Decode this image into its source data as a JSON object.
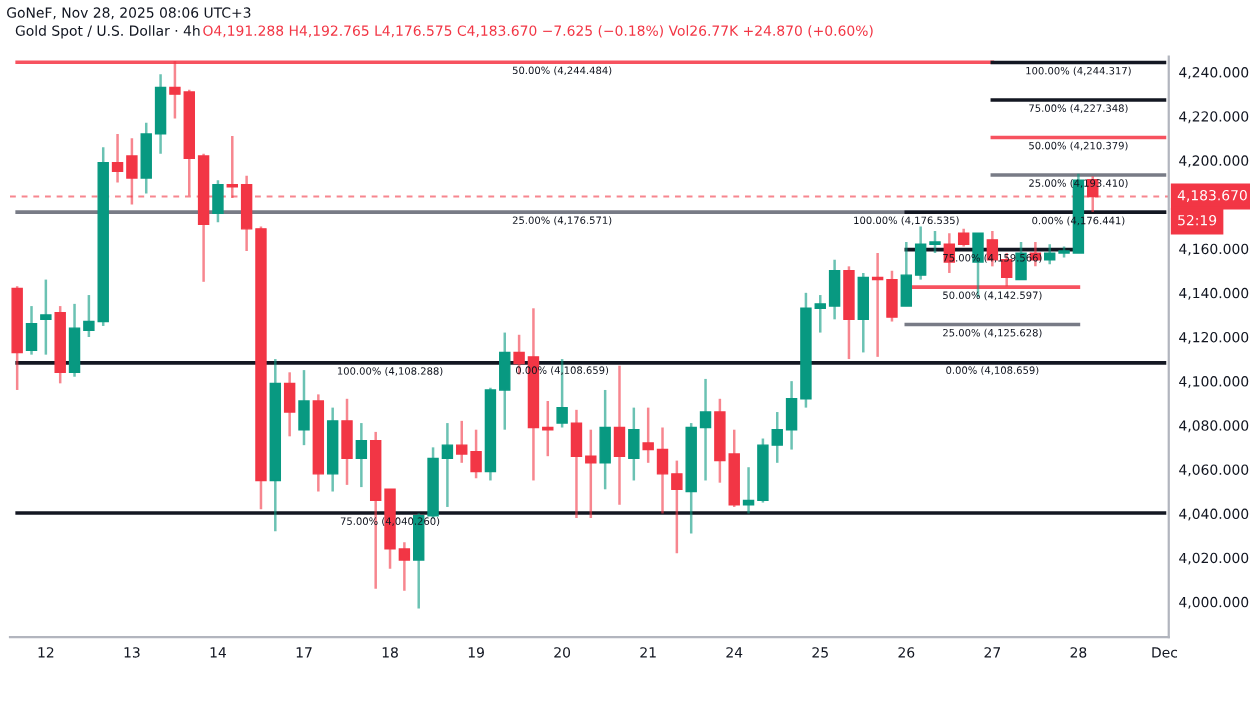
{
  "chart_data": {
    "type": "candlestick",
    "title": "Gold Spot / U.S. Dollar · 4h",
    "subtitle": "O4,191.288 H4,192.765 L4,176.575 C4,183.670 −7.625 (−0.18%) Vol26.77K +24.870 (+0.60%)",
    "categories": [
      null,
      null,
      "12",
      null,
      null,
      null,
      null,
      null,
      "13",
      null,
      null,
      null,
      null,
      null,
      "14",
      null,
      null,
      null,
      null,
      null,
      "17",
      null,
      null,
      null,
      null,
      null,
      "18",
      null,
      null,
      null,
      null,
      null,
      "19",
      null,
      null,
      null,
      null,
      null,
      "20",
      null,
      null,
      null,
      null,
      null,
      "21",
      null,
      null,
      null,
      null,
      null,
      "24",
      null,
      null,
      null,
      null,
      null,
      "25",
      null,
      null,
      null,
      null,
      null,
      "26",
      null,
      null,
      null,
      null,
      null,
      "27",
      null,
      null,
      null,
      null,
      null,
      "28",
      null,
      null,
      null,
      null,
      null,
      "Dec"
    ],
    "ylim": [
      3984,
      4247
    ],
    "yticks": [
      {
        "value": 4000,
        "label": "4,000.000"
      },
      {
        "value": 4020,
        "label": "4,020.000"
      },
      {
        "value": 4040,
        "label": "4,040.000"
      },
      {
        "value": 4060,
        "label": "4,060.000"
      },
      {
        "value": 4080,
        "label": "4,080.000"
      },
      {
        "value": 4100,
        "label": "4,100.000"
      },
      {
        "value": 4120,
        "label": "4,120.000"
      },
      {
        "value": 4140,
        "label": "4,140.000"
      },
      {
        "value": 4160,
        "label": "4,160.000"
      },
      {
        "value": 4200,
        "label": "4,200.000"
      },
      {
        "value": 4220,
        "label": "4,220.000"
      },
      {
        "value": 4240,
        "label": "4,240.000"
      }
    ],
    "grid": false,
    "ref_lines": [
      {
        "axis": "y",
        "value": 4183.67,
        "label": "4,183.670",
        "color": "#f23645",
        "line_style": "dashed"
      }
    ],
    "ohlc": [
      [
        4142,
        4143,
        4096,
        4113
      ],
      [
        4114,
        4134,
        4112,
        4126
      ],
      [
        4128,
        4146,
        4112,
        4130
      ],
      [
        4131,
        4134,
        4099,
        4104
      ],
      [
        4104,
        4135,
        4102,
        4124
      ],
      [
        4123,
        4139,
        4120,
        4127
      ],
      [
        4127,
        4206,
        4125,
        4199
      ],
      [
        4199,
        4212,
        4190,
        4195
      ],
      [
        4202,
        4210,
        4180,
        4192
      ],
      [
        4192,
        4217,
        4185,
        4212
      ],
      [
        4212,
        4239,
        4203,
        4233
      ],
      [
        4233,
        4245,
        4219,
        4230
      ],
      [
        4231,
        4232,
        4184,
        4201
      ],
      [
        4202,
        4203,
        4145,
        4171
      ],
      [
        4176,
        4191,
        4172,
        4189
      ],
      [
        4189,
        4211,
        4183,
        4188
      ],
      [
        4189,
        4193,
        4159,
        4169
      ],
      [
        4169,
        4170,
        4042,
        4055
      ],
      [
        4055,
        4110,
        4032,
        4099
      ],
      [
        4099,
        4104,
        4075,
        4086
      ],
      [
        4078,
        4105,
        4071,
        4091
      ],
      [
        4091,
        4094,
        4050,
        4058
      ],
      [
        4058,
        4088,
        4050,
        4082
      ],
      [
        4082,
        4092,
        4053,
        4065
      ],
      [
        4065,
        4081,
        4052,
        4073
      ],
      [
        4073,
        4077,
        4006,
        4046
      ],
      [
        4051,
        4051,
        4015,
        4024
      ],
      [
        4024,
        4027,
        4005,
        4019
      ],
      [
        4019,
        4040,
        3997,
        4039
      ],
      [
        4039,
        4070,
        4038,
        4065
      ],
      [
        4065,
        4081,
        4043,
        4071
      ],
      [
        4071,
        4082,
        4063,
        4067
      ],
      [
        4068,
        4078,
        4056,
        4059
      ],
      [
        4059,
        4097,
        4055,
        4096
      ],
      [
        4096,
        4122,
        4078,
        4113
      ],
      [
        4113,
        4121,
        4103,
        4108
      ],
      [
        4111,
        4133,
        4055,
        4079
      ],
      [
        4079,
        4091,
        4066,
        4078
      ],
      [
        4081,
        4110,
        4079,
        4088
      ],
      [
        4081,
        4087,
        4038,
        4066
      ],
      [
        4066,
        4078,
        4038,
        4063
      ],
      [
        4063,
        4096,
        4051,
        4079
      ],
      [
        4079,
        4107,
        4044,
        4066
      ],
      [
        4065,
        4088,
        4055,
        4078
      ],
      [
        4072,
        4088,
        4063,
        4069
      ],
      [
        4069,
        4079,
        4040,
        4058
      ],
      [
        4058,
        4064,
        4022,
        4051
      ],
      [
        4050,
        4081,
        4031,
        4079
      ],
      [
        4079,
        4101,
        4055,
        4086
      ],
      [
        4086,
        4092,
        4054,
        4064
      ],
      [
        4067,
        4078,
        4043,
        4044
      ],
      [
        4044,
        4061,
        4040,
        4046
      ],
      [
        4046,
        4074,
        4045,
        4071
      ],
      [
        4071,
        4086,
        4063,
        4078
      ],
      [
        4078,
        4100,
        4069,
        4092
      ],
      [
        4092,
        4140,
        4088,
        4133
      ],
      [
        4133,
        4139,
        4122,
        4135
      ],
      [
        4134,
        4155,
        4128,
        4150
      ],
      [
        4150,
        4152,
        4110,
        4128
      ],
      [
        4128,
        4149,
        4113,
        4147
      ],
      [
        4147,
        4158,
        4111,
        4146
      ],
      [
        4146,
        4150,
        4127,
        4129
      ],
      [
        4134,
        4163,
        4134,
        4148
      ],
      [
        4148,
        4170,
        4146,
        4162
      ],
      [
        4162,
        4168,
        4158,
        4163
      ],
      [
        4162,
        4167,
        4149,
        4154
      ],
      [
        4167,
        4169,
        4161,
        4162
      ],
      [
        4154,
        4167,
        4138,
        4167
      ],
      [
        4164,
        4168,
        4152,
        4155
      ],
      [
        4155,
        4158,
        4143,
        4147
      ],
      [
        4146,
        4163,
        4146,
        4158
      ],
      [
        4158,
        4163,
        4152,
        4155
      ],
      [
        4155,
        4162,
        4153,
        4158
      ],
      [
        4158,
        4161,
        4156,
        4159
      ],
      [
        4158,
        4194,
        4158,
        4191
      ],
      [
        4191.288,
        4192.765,
        4176.575,
        4183.67
      ],
      null,
      null,
      null,
      null,
      null
    ],
    "colors": [
      "#f23645",
      "#089981",
      "#089981",
      "#f23645",
      "#089981",
      "#089981",
      "#089981",
      "#f23645",
      "#f23645",
      "#089981",
      "#089981",
      "#f23645",
      "#f23645",
      "#f23645",
      "#089981",
      "#f23645",
      "#f23645",
      "#f23645",
      "#089981",
      "#f23645",
      "#089981",
      "#f23645",
      "#089981",
      "#f23645",
      "#089981",
      "#f23645",
      "#f23645",
      "#f23645",
      "#089981",
      "#089981",
      "#089981",
      "#f23645",
      "#f23645",
      "#089981",
      "#089981",
      "#f23645",
      "#f23645",
      "#f23645",
      "#089981",
      "#f23645",
      "#f23645",
      "#089981",
      "#f23645",
      "#089981",
      "#f23645",
      "#f23645",
      "#f23645",
      "#089981",
      "#089981",
      "#f23645",
      "#f23645",
      "#089981",
      "#089981",
      "#089981",
      "#089981",
      "#089981",
      "#089981",
      "#089981",
      "#f23645",
      "#089981",
      "#f23645",
      "#f23645",
      "#089981",
      "#089981",
      "#089981",
      "#f23645",
      "#f23645",
      "#089981",
      "#f23645",
      "#f23645",
      "#089981",
      "#f23645",
      "#089981",
      "#089981",
      "#089981",
      "#f23645",
      null,
      null,
      null,
      null,
      null
    ],
    "series": [
      {
        "type": "line",
        "color": "#f7525f",
        "values": [
          4244.484,
          4244.484,
          4244.484,
          4244.484,
          4244.484,
          4244.484,
          4244.484,
          4244.484,
          4244.484,
          4244.484,
          4244.484,
          4244.484,
          4244.484,
          4244.484,
          4244.484,
          4244.484,
          4244.484,
          4244.484,
          4244.484,
          4244.484,
          4244.484,
          4244.484,
          4244.484,
          4244.484,
          4244.484,
          4244.484,
          4244.484,
          4244.484,
          4244.484,
          4244.484,
          4244.484,
          4244.484,
          4244.484,
          4244.484,
          4244.484,
          4244.484,
          4244.484,
          4244.484,
          4244.484,
          4244.484,
          4244.484,
          4244.484,
          4244.484,
          4244.484,
          4244.484,
          4244.484,
          4244.484,
          4244.484,
          4244.484,
          4244.484,
          4244.484,
          4244.484,
          4244.484,
          4244.484,
          4244.484,
          4244.484,
          4244.484,
          4244.484,
          4244.484,
          4244.484,
          4244.484,
          4244.484,
          4244.484,
          4244.484,
          4244.484,
          4244.484,
          4244.484,
          4244.484,
          4244.484,
          null,
          null,
          null,
          null,
          null,
          null,
          null,
          null,
          null,
          null,
          null,
          null
        ]
      },
      {
        "type": "line",
        "color": "#787b86",
        "values": [
          4176.571,
          4176.571,
          4176.571,
          4176.571,
          4176.571,
          4176.571,
          4176.571,
          4176.571,
          4176.571,
          4176.571,
          4176.571,
          4176.571,
          4176.571,
          4176.571,
          4176.571,
          4176.571,
          4176.571,
          4176.571,
          4176.571,
          4176.571,
          4176.571,
          4176.571,
          4176.571,
          4176.571,
          4176.571,
          4176.571,
          4176.571,
          4176.571,
          4176.571,
          4176.571,
          4176.571,
          4176.571,
          4176.571,
          4176.571,
          4176.571,
          4176.571,
          4176.571,
          4176.571,
          4176.571,
          4176.571,
          4176.571,
          4176.571,
          4176.571,
          4176.571,
          4176.571,
          4176.571,
          4176.571,
          4176.571,
          4176.571,
          4176.571,
          4176.571,
          4176.571,
          4176.571,
          4176.571,
          4176.571,
          4176.571,
          4176.571,
          4176.571,
          4176.571,
          4176.571,
          4176.571,
          4176.571,
          4176.571,
          4176.571,
          4176.571,
          4176.571,
          4176.571,
          4176.571,
          4176.571,
          4176.571,
          4176.571,
          4176.571,
          4176.571,
          4176.571,
          4176.571,
          4176.571,
          4176.571,
          4176.571,
          4176.571,
          4176.571,
          4176.571
        ]
      },
      {
        "type": "line",
        "color": "#131722",
        "values": [
          4108.288,
          4108.288,
          4108.288,
          4108.288,
          4108.288,
          4108.288,
          4108.288,
          4108.288,
          4108.288,
          4108.288,
          4108.288,
          4108.288,
          4108.288,
          4108.288,
          4108.288,
          4108.288,
          4108.288,
          4108.288,
          4108.288,
          4108.288,
          4108.288,
          4108.288,
          4108.288,
          4108.288,
          4108.288,
          4108.288,
          4108.288,
          4108.288,
          4108.288,
          4108.288,
          4108.288,
          4108.288,
          4108.288,
          4108.288,
          4108.288,
          4108.288,
          4108.288,
          4108.288,
          4108.288,
          4108.288,
          4108.288,
          4108.288,
          4108.288,
          4108.288,
          4108.288,
          4108.288,
          4108.288,
          4108.288,
          4108.288,
          4108.288,
          4108.288,
          4108.288,
          4108.288,
          4108.288,
          4108.288,
          4108.288,
          4108.288,
          4108.288,
          4108.288,
          4108.288,
          4108.288,
          4108.288,
          4108.288,
          4108.288,
          4108.288,
          4108.288,
          4108.288,
          4108.288,
          4108.288,
          4108.288,
          4108.288,
          4108.288,
          4108.288,
          4108.288,
          4108.288,
          4108.288,
          4108.288,
          4108.288,
          4108.288,
          4108.288,
          4108.288
        ]
      },
      {
        "type": "line",
        "color": "#131722",
        "values": [
          4040.26,
          4040.26,
          4040.26,
          4040.26,
          4040.26,
          4040.26,
          4040.26,
          4040.26,
          4040.26,
          4040.26,
          4040.26,
          4040.26,
          4040.26,
          4040.26,
          4040.26,
          4040.26,
          4040.26,
          4040.26,
          4040.26,
          4040.26,
          4040.26,
          4040.26,
          4040.26,
          4040.26,
          4040.26,
          4040.26,
          4040.26,
          4040.26,
          4040.26,
          4040.26,
          4040.26,
          4040.26,
          4040.26,
          4040.26,
          4040.26,
          4040.26,
          4040.26,
          4040.26,
          4040.26,
          4040.26,
          4040.26,
          4040.26,
          4040.26,
          4040.26,
          4040.26,
          4040.26,
          4040.26,
          4040.26,
          4040.26,
          4040.26,
          4040.26,
          4040.26,
          4040.26,
          4040.26,
          4040.26,
          4040.26,
          4040.26,
          4040.26,
          4040.26,
          4040.26,
          4040.26,
          4040.26,
          4040.26,
          4040.26,
          4040.26,
          4040.26,
          4040.26,
          4040.26,
          4040.26,
          4040.26,
          4040.26,
          4040.26,
          4040.26,
          4040.26,
          4040.26,
          4040.26,
          4040.26,
          4040.26,
          4040.26,
          4040.26,
          4040.26
        ]
      },
      {
        "type": "line",
        "color": "#131722",
        "values": [
          null,
          null,
          null,
          null,
          null,
          null,
          null,
          null,
          null,
          null,
          null,
          null,
          null,
          null,
          null,
          null,
          null,
          null,
          null,
          null,
          null,
          null,
          null,
          null,
          null,
          null,
          null,
          null,
          null,
          null,
          null,
          null,
          null,
          null,
          null,
          null,
          null,
          null,
          null,
          null,
          null,
          null,
          null,
          null,
          null,
          null,
          null,
          null,
          null,
          null,
          null,
          null,
          null,
          null,
          null,
          null,
          null,
          null,
          null,
          null,
          null,
          null,
          null,
          null,
          null,
          null,
          null,
          null,
          4244.317,
          4244.317,
          4244.317,
          4244.317,
          4244.317,
          4244.317,
          4244.317,
          4244.317,
          4244.317,
          4244.317,
          4244.317,
          4244.317,
          4244.317
        ]
      },
      {
        "type": "line",
        "color": "#131722",
        "values": [
          null,
          null,
          null,
          null,
          null,
          null,
          null,
          null,
          null,
          null,
          null,
          null,
          null,
          null,
          null,
          null,
          null,
          null,
          null,
          null,
          null,
          null,
          null,
          null,
          null,
          null,
          null,
          null,
          null,
          null,
          null,
          null,
          null,
          null,
          null,
          null,
          null,
          null,
          null,
          null,
          null,
          null,
          null,
          null,
          null,
          null,
          null,
          null,
          null,
          null,
          null,
          null,
          null,
          null,
          null,
          null,
          null,
          null,
          null,
          null,
          null,
          null,
          null,
          null,
          null,
          null,
          null,
          null,
          4227.348,
          4227.348,
          4227.348,
          4227.348,
          4227.348,
          4227.348,
          4227.348,
          4227.348,
          4227.348,
          4227.348,
          4227.348,
          4227.348,
          4227.348
        ]
      },
      {
        "type": "line",
        "color": "#f7525f",
        "values": [
          null,
          null,
          null,
          null,
          null,
          null,
          null,
          null,
          null,
          null,
          null,
          null,
          null,
          null,
          null,
          null,
          null,
          null,
          null,
          null,
          null,
          null,
          null,
          null,
          null,
          null,
          null,
          null,
          null,
          null,
          null,
          null,
          null,
          null,
          null,
          null,
          null,
          null,
          null,
          null,
          null,
          null,
          null,
          null,
          null,
          null,
          null,
          null,
          null,
          null,
          null,
          null,
          null,
          null,
          null,
          null,
          null,
          null,
          null,
          null,
          null,
          null,
          null,
          null,
          null,
          null,
          null,
          null,
          4210.379,
          4210.379,
          4210.379,
          4210.379,
          4210.379,
          4210.379,
          4210.379,
          4210.379,
          4210.379,
          4210.379,
          4210.379,
          4210.379,
          4210.379
        ]
      },
      {
        "type": "line",
        "color": "#787b86",
        "values": [
          null,
          null,
          null,
          null,
          null,
          null,
          null,
          null,
          null,
          null,
          null,
          null,
          null,
          null,
          null,
          null,
          null,
          null,
          null,
          null,
          null,
          null,
          null,
          null,
          null,
          null,
          null,
          null,
          null,
          null,
          null,
          null,
          null,
          null,
          null,
          null,
          null,
          null,
          null,
          null,
          null,
          null,
          null,
          null,
          null,
          null,
          null,
          null,
          null,
          null,
          null,
          null,
          null,
          null,
          null,
          null,
          null,
          null,
          null,
          null,
          null,
          null,
          null,
          null,
          null,
          null,
          null,
          null,
          4193.41,
          4193.41,
          4193.41,
          4193.41,
          4193.41,
          4193.41,
          4193.41,
          4193.41,
          4193.41,
          4193.41,
          4193.41,
          4193.41,
          4193.41
        ]
      },
      {
        "type": "line",
        "color": "#131722",
        "values": [
          null,
          null,
          null,
          null,
          null,
          null,
          null,
          null,
          null,
          null,
          null,
          null,
          null,
          null,
          null,
          null,
          null,
          null,
          null,
          null,
          null,
          null,
          null,
          null,
          null,
          null,
          null,
          null,
          null,
          null,
          null,
          null,
          null,
          null,
          null,
          null,
          null,
          null,
          null,
          null,
          null,
          null,
          null,
          null,
          null,
          null,
          null,
          null,
          null,
          null,
          null,
          null,
          null,
          null,
          null,
          null,
          null,
          null,
          null,
          null,
          null,
          null,
          4176.535,
          4176.535,
          4176.535,
          4176.535,
          4176.535,
          4176.535,
          4176.535,
          4176.535,
          4176.535,
          4176.535,
          4176.535,
          4176.535,
          4176.535,
          4176.535,
          4176.535,
          4176.535,
          4176.535,
          4176.535,
          4176.535
        ]
      },
      {
        "type": "line",
        "color": "#131722",
        "values": [
          null,
          null,
          null,
          null,
          null,
          null,
          null,
          null,
          null,
          null,
          null,
          null,
          null,
          null,
          null,
          null,
          null,
          null,
          null,
          null,
          null,
          null,
          null,
          null,
          null,
          null,
          null,
          null,
          null,
          null,
          null,
          null,
          null,
          null,
          null,
          null,
          null,
          null,
          null,
          null,
          null,
          null,
          null,
          null,
          null,
          null,
          null,
          null,
          null,
          null,
          null,
          null,
          null,
          null,
          null,
          null,
          null,
          null,
          null,
          null,
          null,
          null,
          4159.566,
          4159.566,
          4159.566,
          4159.566,
          4159.566,
          4159.566,
          4159.566,
          4159.566,
          4159.566,
          4159.566,
          4159.566,
          4159.566,
          4159.566,
          null,
          null,
          null,
          null,
          null,
          null
        ]
      },
      {
        "type": "line",
        "color": "#f7525f",
        "values": [
          null,
          null,
          null,
          null,
          null,
          null,
          null,
          null,
          null,
          null,
          null,
          null,
          null,
          null,
          null,
          null,
          null,
          null,
          null,
          null,
          null,
          null,
          null,
          null,
          null,
          null,
          null,
          null,
          null,
          null,
          null,
          null,
          null,
          null,
          null,
          null,
          null,
          null,
          null,
          null,
          null,
          null,
          null,
          null,
          null,
          null,
          null,
          null,
          null,
          null,
          null,
          null,
          null,
          null,
          null,
          null,
          null,
          null,
          null,
          null,
          null,
          null,
          4142.597,
          4142.597,
          4142.597,
          4142.597,
          4142.597,
          4142.597,
          4142.597,
          4142.597,
          4142.597,
          4142.597,
          4142.597,
          4142.597,
          4142.597,
          null,
          null,
          null,
          null,
          null,
          null
        ]
      },
      {
        "type": "line",
        "color": "#787b86",
        "values": [
          null,
          null,
          null,
          null,
          null,
          null,
          null,
          null,
          null,
          null,
          null,
          null,
          null,
          null,
          null,
          null,
          null,
          null,
          null,
          null,
          null,
          null,
          null,
          null,
          null,
          null,
          null,
          null,
          null,
          null,
          null,
          null,
          null,
          null,
          null,
          null,
          null,
          null,
          null,
          null,
          null,
          null,
          null,
          null,
          null,
          null,
          null,
          null,
          null,
          null,
          null,
          null,
          null,
          null,
          null,
          null,
          null,
          null,
          null,
          null,
          null,
          null,
          4125.628,
          4125.628,
          4125.628,
          4125.628,
          4125.628,
          4125.628,
          4125.628,
          4125.628,
          4125.628,
          4125.628,
          4125.628,
          4125.628,
          4125.628,
          null,
          null,
          null,
          null,
          null,
          null
        ]
      }
    ],
    "annotations": [
      "GoNeF, Nov 28, 2025 08:06 UTC+3",
      "52:19",
      {
        "text": "50.00% (4,244.484)",
        "x": "20",
        "y": 4244.484
      },
      {
        "text": "25.00% (4,176.571)",
        "x": "20",
        "y": 4176.571
      },
      {
        "text": "100.00% (4,108.288)",
        "x": "18",
        "y": 4108.288
      },
      {
        "text": "0.00% (4,108.659)",
        "x": "20",
        "y": 4108.659
      },
      {
        "text": "75.00% (4,040.260)",
        "x": "18",
        "y": 4040.26
      },
      {
        "text": "100.00% (4,244.317)",
        "x": "28",
        "y": 4244.317
      },
      {
        "text": "75.00% (4,227.348)",
        "x": "28",
        "y": 4227.348
      },
      {
        "text": "50.00% (4,210.379)",
        "x": "28",
        "y": 4210.379
      },
      {
        "text": "25.00% (4,193.410)",
        "x": "28",
        "y": 4193.41
      },
      {
        "text": "100.00% (4,176.535)",
        "x": "26",
        "y": 4176.535
      },
      {
        "text": "0.00% (4,176.441)",
        "x": "28",
        "y": 4176.441
      },
      {
        "text": "75.00% (4,159.566)",
        "x": "27",
        "y": 4159.566
      },
      {
        "text": "50.00% (4,142.597)",
        "x": "27",
        "y": 4142.597
      },
      {
        "text": "25.00% (4,125.628)",
        "x": "27",
        "y": 4125.628
      },
      {
        "text": "0.00% (4,108.659)",
        "x": "27",
        "y": 4108.659
      }
    ]
  }
}
